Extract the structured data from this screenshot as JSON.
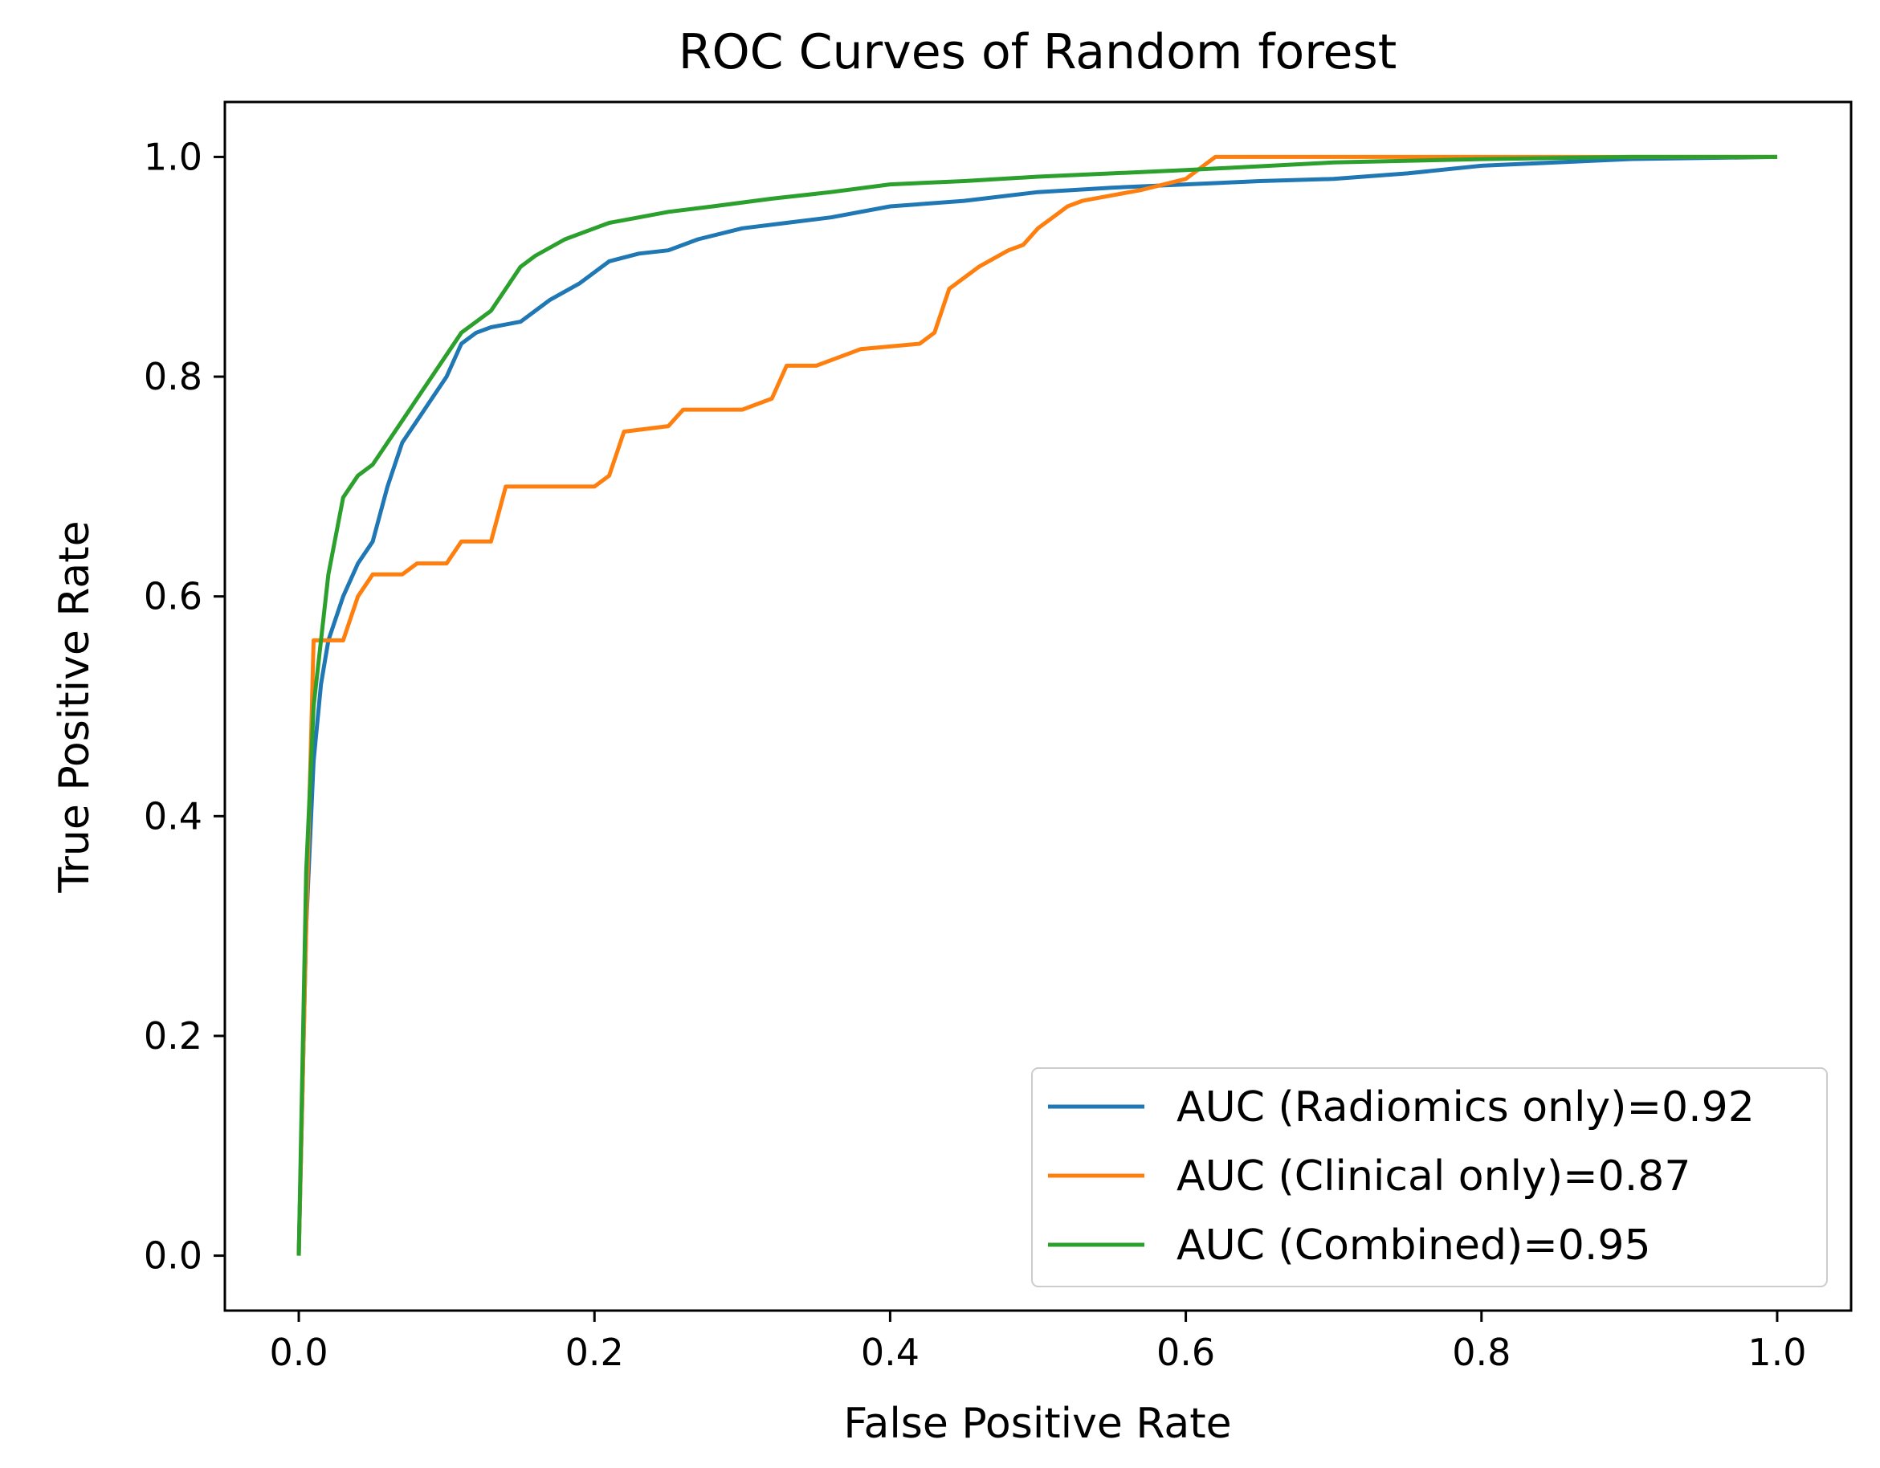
{
  "chart_data": {
    "type": "line",
    "title": "ROC Curves of Random forest",
    "xlabel": "False Positive Rate",
    "ylabel": "True Positive Rate",
    "xlim": [
      -0.05,
      1.05
    ],
    "ylim": [
      -0.05,
      1.05
    ],
    "xticks": [
      "0.0",
      "0.2",
      "0.4",
      "0.6",
      "0.8",
      "1.0"
    ],
    "yticks": [
      "0.0",
      "0.2",
      "0.4",
      "0.6",
      "0.8",
      "1.0"
    ],
    "grid": false,
    "legend_position": "lower right",
    "series": [
      {
        "name": "AUC (Radiomics only)=0.92",
        "color": "#1f77b4",
        "x": [
          0.0,
          0.005,
          0.01,
          0.015,
          0.02,
          0.03,
          0.04,
          0.05,
          0.06,
          0.07,
          0.08,
          0.09,
          0.1,
          0.11,
          0.12,
          0.13,
          0.15,
          0.17,
          0.19,
          0.21,
          0.23,
          0.25,
          0.27,
          0.3,
          0.33,
          0.36,
          0.4,
          0.45,
          0.5,
          0.55,
          0.6,
          0.65,
          0.7,
          0.75,
          0.8,
          0.9,
          1.0
        ],
        "y": [
          0.0,
          0.3,
          0.45,
          0.52,
          0.56,
          0.6,
          0.63,
          0.65,
          0.7,
          0.74,
          0.76,
          0.78,
          0.8,
          0.83,
          0.84,
          0.845,
          0.85,
          0.87,
          0.885,
          0.905,
          0.912,
          0.915,
          0.925,
          0.935,
          0.94,
          0.945,
          0.955,
          0.96,
          0.968,
          0.972,
          0.975,
          0.978,
          0.98,
          0.985,
          0.992,
          0.998,
          1.0
        ]
      },
      {
        "name": "AUC (Clinical only)=0.87",
        "color": "#ff7f0e",
        "x": [
          0.0,
          0.005,
          0.01,
          0.01,
          0.03,
          0.04,
          0.05,
          0.07,
          0.08,
          0.1,
          0.11,
          0.12,
          0.13,
          0.14,
          0.15,
          0.2,
          0.21,
          0.22,
          0.25,
          0.26,
          0.3,
          0.32,
          0.33,
          0.35,
          0.37,
          0.38,
          0.42,
          0.43,
          0.44,
          0.45,
          0.46,
          0.48,
          0.49,
          0.5,
          0.51,
          0.52,
          0.53,
          0.55,
          0.57,
          0.6,
          0.62,
          0.7,
          0.8,
          1.0
        ],
        "y": [
          0.0,
          0.3,
          0.56,
          0.56,
          0.56,
          0.6,
          0.62,
          0.62,
          0.63,
          0.63,
          0.65,
          0.65,
          0.65,
          0.7,
          0.7,
          0.7,
          0.71,
          0.75,
          0.755,
          0.77,
          0.77,
          0.78,
          0.81,
          0.81,
          0.82,
          0.825,
          0.83,
          0.84,
          0.88,
          0.89,
          0.9,
          0.915,
          0.92,
          0.935,
          0.945,
          0.955,
          0.96,
          0.965,
          0.97,
          0.98,
          1.0,
          1.0,
          1.0,
          1.0
        ]
      },
      {
        "name": "AUC (Combined)=0.95",
        "color": "#2ca02c",
        "x": [
          0.0,
          0.005,
          0.01,
          0.02,
          0.03,
          0.04,
          0.05,
          0.06,
          0.07,
          0.08,
          0.09,
          0.1,
          0.11,
          0.12,
          0.13,
          0.14,
          0.15,
          0.16,
          0.18,
          0.2,
          0.21,
          0.23,
          0.25,
          0.28,
          0.32,
          0.36,
          0.4,
          0.45,
          0.5,
          0.55,
          0.6,
          0.7,
          0.8,
          0.9,
          1.0
        ],
        "y": [
          0.0,
          0.35,
          0.5,
          0.62,
          0.69,
          0.71,
          0.72,
          0.74,
          0.76,
          0.78,
          0.8,
          0.82,
          0.84,
          0.85,
          0.86,
          0.88,
          0.9,
          0.91,
          0.925,
          0.935,
          0.94,
          0.945,
          0.95,
          0.955,
          0.962,
          0.968,
          0.975,
          0.978,
          0.982,
          0.985,
          0.988,
          0.995,
          0.998,
          1.0,
          1.0
        ]
      }
    ]
  }
}
